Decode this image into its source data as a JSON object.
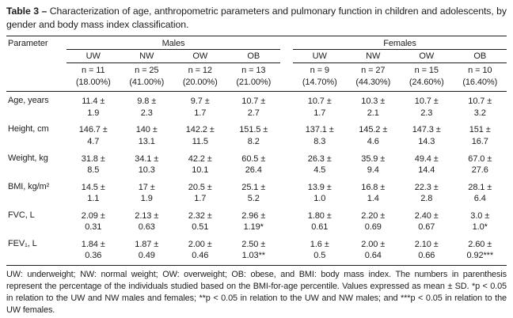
{
  "title": {
    "bold": "Table 3 –",
    "rest": "Characterization of age, anthropometric parameters and pulmonary function in children and adolescents, by gender and body mass index classification."
  },
  "table": {
    "param_header": "Parameter",
    "groups": {
      "males": "Males",
      "females": "Females"
    },
    "subheaders": [
      "UW",
      "NW",
      "OW",
      "OB",
      "UW",
      "NW",
      "OW",
      "OB"
    ],
    "counts": [
      {
        "n": "n = 11",
        "pct": "(18.00%)"
      },
      {
        "n": "n = 25",
        "pct": "(41.00%)"
      },
      {
        "n": "n = 12",
        "pct": "(20.00%)"
      },
      {
        "n": "n = 13",
        "pct": "(21.00%)"
      },
      {
        "n": "n = 9",
        "pct": "(14.70%)"
      },
      {
        "n": "n = 27",
        "pct": "(44.30%)"
      },
      {
        "n": "n = 15",
        "pct": "(24.60%)"
      },
      {
        "n": "n = 10",
        "pct": "(16.40%)"
      }
    ],
    "rows": [
      {
        "label": "Age, years",
        "cells": [
          {
            "m": "11.4 ±",
            "s": "1.9"
          },
          {
            "m": "9.8 ±",
            "s": "2.3"
          },
          {
            "m": "9.7 ±",
            "s": "1.7"
          },
          {
            "m": "10.7 ±",
            "s": "2.7"
          },
          {
            "m": "10.7 ±",
            "s": "1.7"
          },
          {
            "m": "10.3 ±",
            "s": "2.1"
          },
          {
            "m": "10.7 ±",
            "s": "2.3"
          },
          {
            "m": "10.7 ±",
            "s": "3.2"
          }
        ]
      },
      {
        "label": "Height, cm",
        "cells": [
          {
            "m": "146.7 ±",
            "s": "4.7"
          },
          {
            "m": "140 ±",
            "s": "13.1"
          },
          {
            "m": "142.2 ±",
            "s": "11.5"
          },
          {
            "m": "151.5 ±",
            "s": "8.2"
          },
          {
            "m": "137.1 ±",
            "s": "8.3"
          },
          {
            "m": "145.2 ±",
            "s": "4.6"
          },
          {
            "m": "147.3 ±",
            "s": "14.3"
          },
          {
            "m": "151 ±",
            "s": "16.7"
          }
        ]
      },
      {
        "label": "Weight, kg",
        "cells": [
          {
            "m": "31.8 ±",
            "s": "8.5"
          },
          {
            "m": "34.1 ±",
            "s": "10.3"
          },
          {
            "m": "42.2 ±",
            "s": "10.1"
          },
          {
            "m": "60.5 ±",
            "s": "26.4"
          },
          {
            "m": "26.3 ±",
            "s": "4.5"
          },
          {
            "m": "35.9 ±",
            "s": "9.4"
          },
          {
            "m": "49.4 ±",
            "s": "14.4"
          },
          {
            "m": "67.0 ±",
            "s": "27.6"
          }
        ]
      },
      {
        "label": "BMI, kg/m²",
        "cells": [
          {
            "m": "14.5 ±",
            "s": "1.1"
          },
          {
            "m": "17 ±",
            "s": "1.9"
          },
          {
            "m": "20.5 ±",
            "s": "1.7"
          },
          {
            "m": "25.1 ±",
            "s": "5.2"
          },
          {
            "m": "13.9 ±",
            "s": "1.0"
          },
          {
            "m": "16.8 ±",
            "s": "1.4"
          },
          {
            "m": "22.3 ±",
            "s": "2.8"
          },
          {
            "m": "28.1 ±",
            "s": "6.4"
          }
        ]
      },
      {
        "label": "FVC, L",
        "cells": [
          {
            "m": "2.09 ±",
            "s": "0.31"
          },
          {
            "m": "2.13 ±",
            "s": "0.63"
          },
          {
            "m": "2.32 ±",
            "s": "0.51"
          },
          {
            "m": "2.96 ±",
            "s": "1.19*"
          },
          {
            "m": "1.80 ±",
            "s": "0.61"
          },
          {
            "m": "2.20 ±",
            "s": "0.69"
          },
          {
            "m": "2.40 ±",
            "s": "0.67"
          },
          {
            "m": "3.0 ±",
            "s": "1.0*"
          }
        ]
      },
      {
        "label": "FEV₁, L",
        "cells": [
          {
            "m": "1.84 ±",
            "s": "0.36"
          },
          {
            "m": "1.87 ±",
            "s": "0.49"
          },
          {
            "m": "2.00 ±",
            "s": "0.46"
          },
          {
            "m": "2.50 ±",
            "s": "1.03**"
          },
          {
            "m": "1.6 ±",
            "s": "0.5"
          },
          {
            "m": "2.00 ±",
            "s": "0.64"
          },
          {
            "m": "2.10 ±",
            "s": "0.66"
          },
          {
            "m": "2.60 ±",
            "s": "0.92***"
          }
        ]
      }
    ]
  },
  "footnote": "UW: underweight; NW: normal weight; OW: overweight; OB: obese, and BMI: body mass index. The numbers in parenthesis represent the percentage of the individuals studied based on the BMI-for-age percentile. Values expressed as mean ± SD. *p < 0.05 in relation to the UW and NW males and females; **p < 0.05 in relation to the UW and NW males; and ***p < 0.05 in relation to the UW females."
}
